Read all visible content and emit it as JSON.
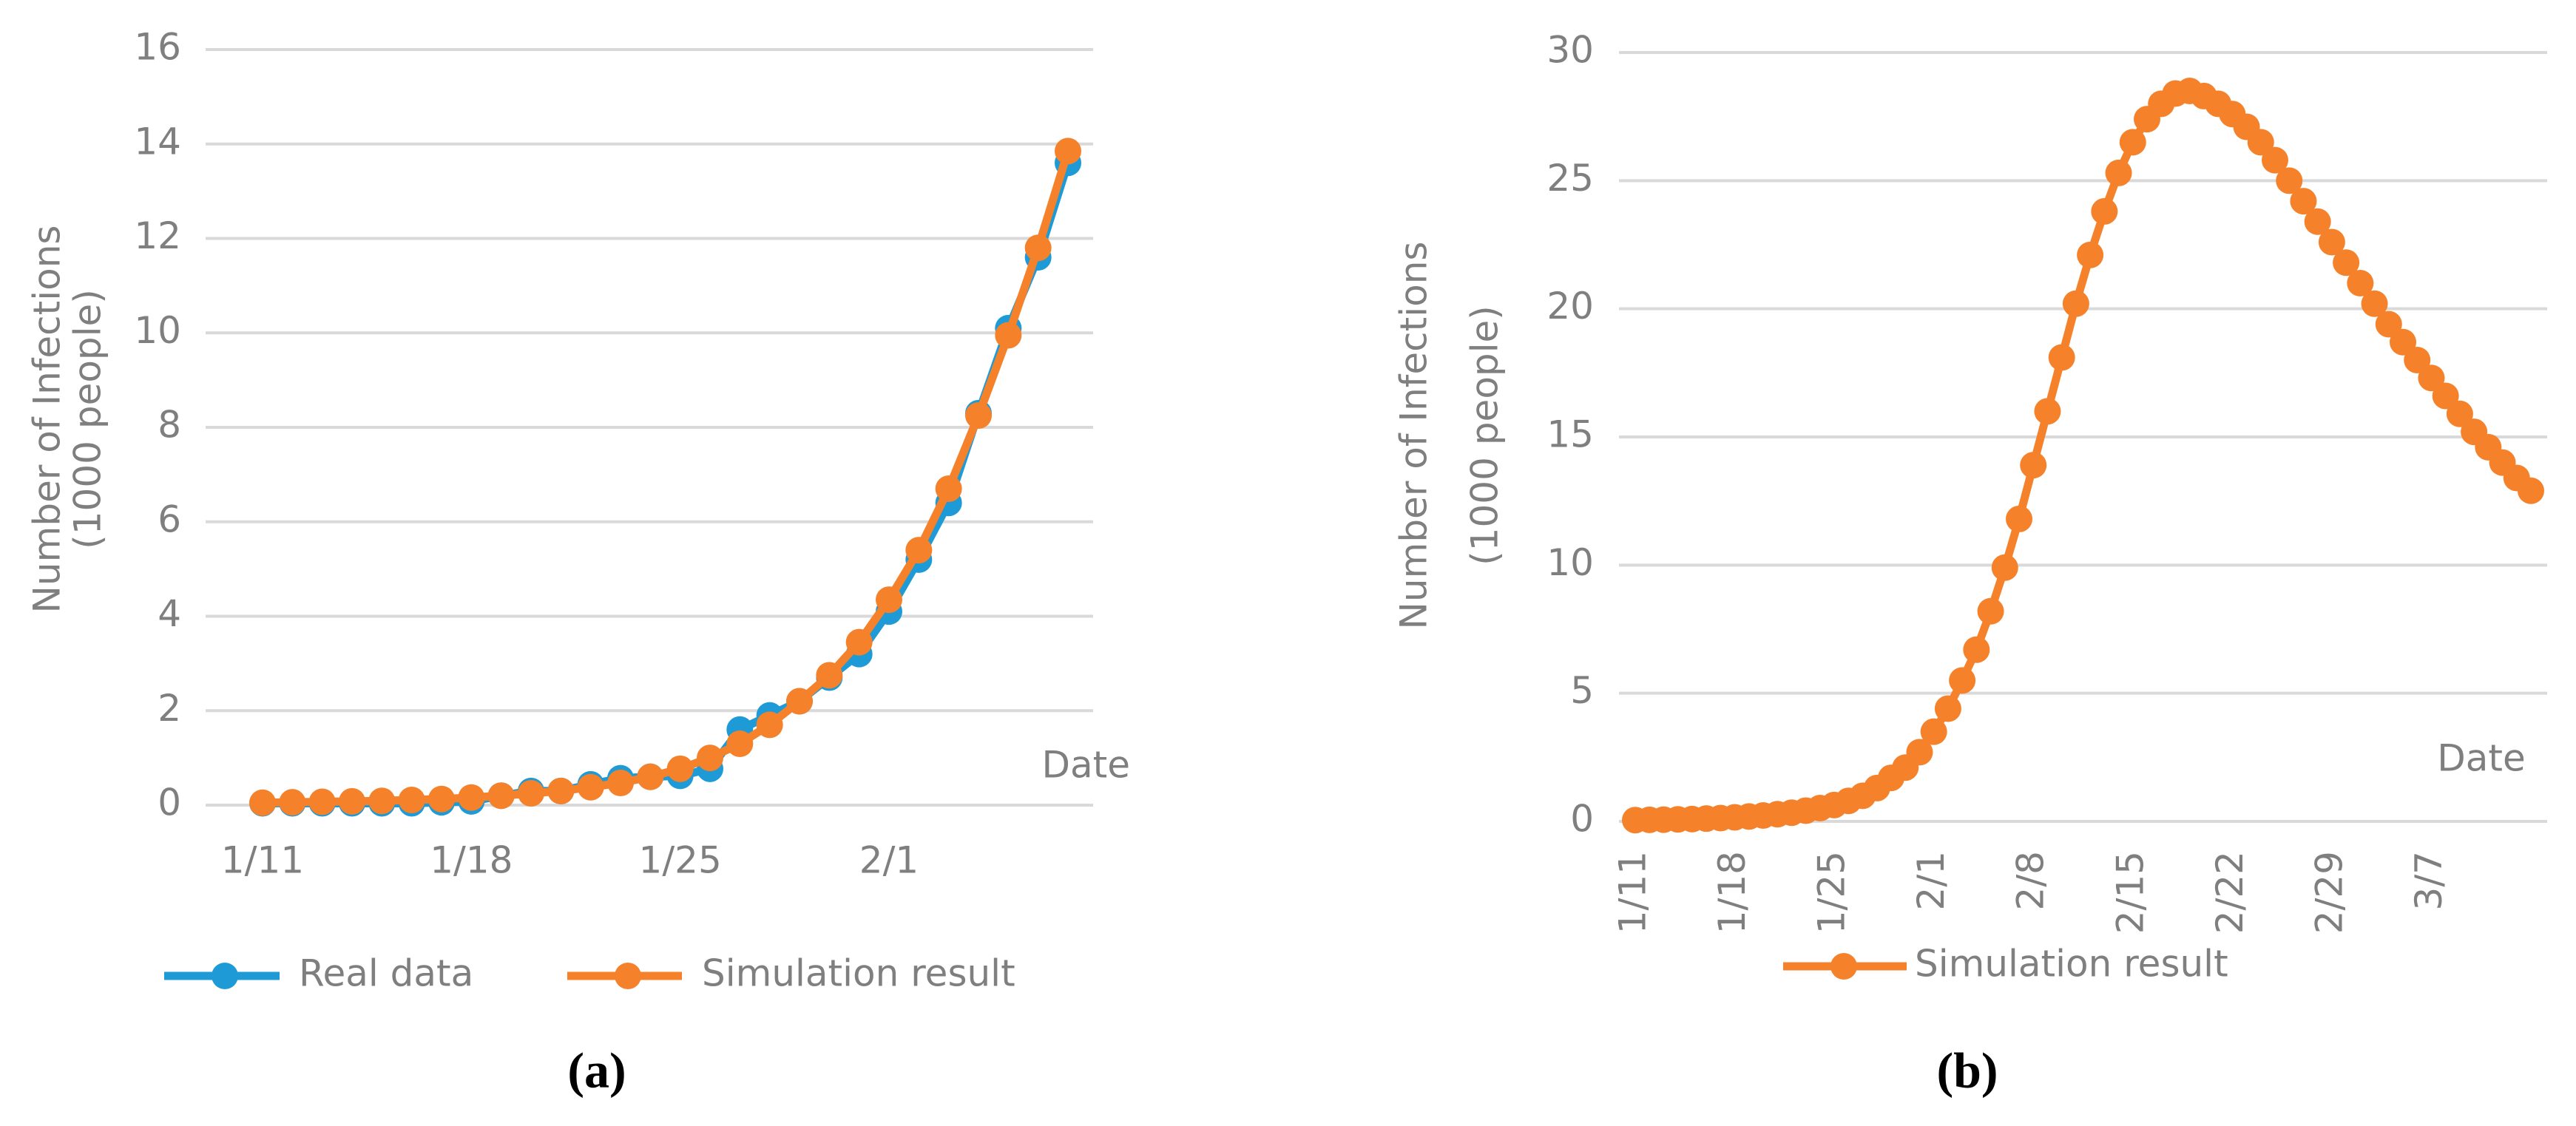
{
  "chart_data": [
    {
      "type": "line",
      "caption": "(a)",
      "ylabel": [
        "Number of Infections",
        "(1000 people)"
      ],
      "xlabel": "Date",
      "categories": [
        "1/11",
        null,
        null,
        null,
        null,
        null,
        null,
        "1/18",
        null,
        null,
        null,
        null,
        null,
        null,
        "1/25",
        null,
        null,
        null,
        null,
        null,
        null,
        "2/1",
        null,
        null,
        null,
        null,
        null,
        null
      ],
      "series": [
        {
          "name": "Real data",
          "color": "#1e9ad6",
          "values": [
            0.04,
            0.04,
            0.04,
            0.04,
            0.04,
            0.04,
            0.06,
            0.08,
            0.2,
            0.3,
            0.3,
            0.44,
            0.57,
            0.6,
            0.62,
            0.77,
            1.6,
            1.9,
            2.2,
            2.7,
            3.2,
            4.1,
            5.2,
            6.4,
            8.3,
            10.1,
            11.6,
            13.6
          ]
        },
        {
          "name": "Simulation result",
          "color": "#f5822a",
          "values": [
            0.05,
            0.06,
            0.07,
            0.08,
            0.09,
            0.11,
            0.13,
            0.16,
            0.2,
            0.25,
            0.3,
            0.38,
            0.47,
            0.6,
            0.77,
            1.0,
            1.3,
            1.7,
            2.2,
            2.75,
            3.45,
            4.35,
            5.4,
            6.7,
            8.25,
            9.95,
            11.8,
            13.85
          ]
        }
      ],
      "ylim": [
        0,
        16
      ],
      "yticks": [
        0,
        2,
        4,
        6,
        8,
        10,
        12,
        14,
        16
      ],
      "grid": true,
      "legend": "bottom"
    },
    {
      "type": "line",
      "caption": "(b)",
      "ylabel": [
        "Number of Infections",
        "(1000 people)"
      ],
      "xlabel": "Date",
      "categories": [
        "1/11",
        null,
        null,
        null,
        null,
        null,
        null,
        "1/18",
        null,
        null,
        null,
        null,
        null,
        null,
        "1/25",
        null,
        null,
        null,
        null,
        null,
        null,
        "2/1",
        null,
        null,
        null,
        null,
        null,
        null,
        "2/8",
        null,
        null,
        null,
        null,
        null,
        null,
        "2/15",
        null,
        null,
        null,
        null,
        null,
        null,
        "2/22",
        null,
        null,
        null,
        null,
        null,
        null,
        "2/29",
        null,
        null,
        null,
        null,
        null,
        null,
        "3/7",
        null,
        null,
        null,
        null,
        null,
        null,
        null
      ],
      "series": [
        {
          "name": "Simulation result",
          "color": "#f5822a",
          "values": [
            0.05,
            0.06,
            0.07,
            0.08,
            0.09,
            0.11,
            0.13,
            0.16,
            0.19,
            0.23,
            0.28,
            0.34,
            0.42,
            0.52,
            0.64,
            0.8,
            1.0,
            1.3,
            1.7,
            2.1,
            2.7,
            3.5,
            4.4,
            5.5,
            6.7,
            8.2,
            9.9,
            11.8,
            13.9,
            16.0,
            18.1,
            20.2,
            22.1,
            23.8,
            25.3,
            26.5,
            27.4,
            28.0,
            28.4,
            28.5,
            28.3,
            28.0,
            27.6,
            27.1,
            26.5,
            25.8,
            25.0,
            24.2,
            23.4,
            22.6,
            21.8,
            21.0,
            20.2,
            19.4,
            18.7,
            18.0,
            17.3,
            16.6,
            15.9,
            15.2,
            14.6,
            14.0,
            13.4,
            12.9
          ]
        }
      ],
      "ylim": [
        0,
        30
      ],
      "yticks": [
        0,
        5,
        10,
        15,
        20,
        25,
        30
      ],
      "grid": true,
      "legend": "bottom",
      "rotate_xticks": true
    }
  ]
}
